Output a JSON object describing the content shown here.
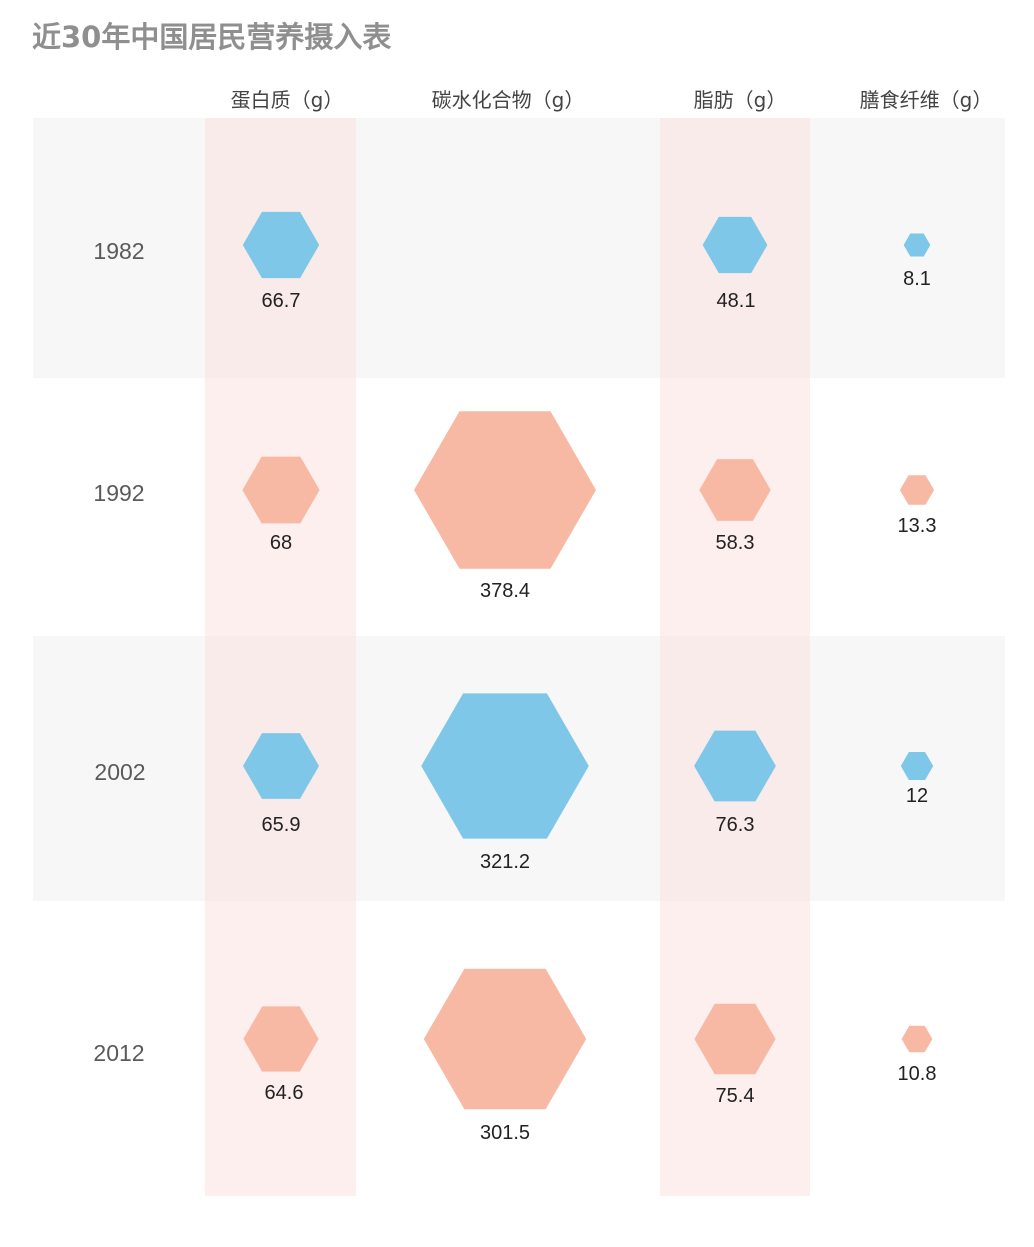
{
  "chart_data": {
    "type": "table",
    "title": "近30年中国居民营养摄入表",
    "columns": [
      "蛋白质（g）",
      "碳水化合物（g）",
      "脂肪（g）",
      "膳食纤维（g）"
    ],
    "rows": [
      {
        "year": "1982",
        "values": [
          66.7,
          null,
          48.1,
          8.1
        ]
      },
      {
        "year": "1992",
        "values": [
          68,
          378.4,
          58.3,
          13.3
        ]
      },
      {
        "year": "2002",
        "values": [
          65.9,
          321.2,
          76.3,
          12
        ]
      },
      {
        "year": "2012",
        "values": [
          64.6,
          301.5,
          75.4,
          10.8
        ]
      }
    ],
    "value_labels": [
      [
        "66.7",
        "",
        "48.1",
        "8.1"
      ],
      [
        "68",
        "378.4",
        "58.3",
        "13.3"
      ],
      [
        "65.9",
        "321.2",
        "76.3",
        "12"
      ],
      [
        "64.6",
        "301.5",
        "75.4",
        "10.8"
      ]
    ]
  },
  "colors": {
    "blue_hexagon": "#7fc7e8",
    "salmon_hexagon": "#f7b9a4",
    "row_band_gray": "#f7f7f8",
    "column_band_pink": "#fbeeeb",
    "title": "#8f8f8f"
  }
}
